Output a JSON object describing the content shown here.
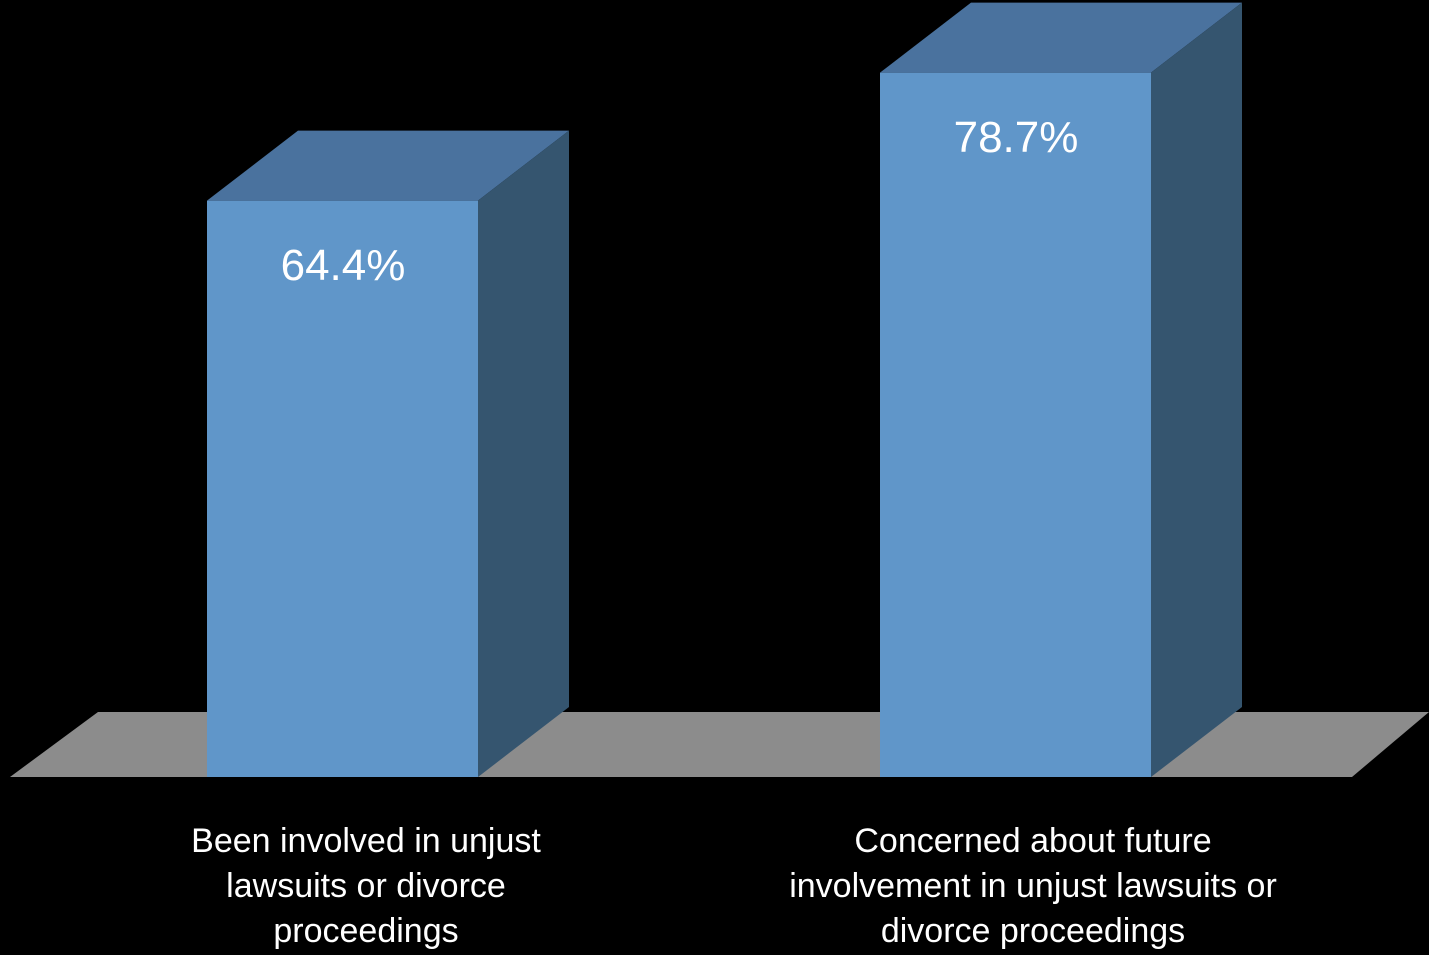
{
  "chart_data": {
    "type": "bar",
    "style": "3d-column",
    "categories": [
      "Been involved in unjust lawsuits or divorce proceedings",
      "Concerned about future involvement in unjust lawsuits or divorce proceedings"
    ],
    "values": [
      64.4,
      78.7
    ],
    "data_labels": [
      "64.4%",
      "78.7%"
    ],
    "title": "",
    "xlabel": "",
    "ylabel": "",
    "ylim": [
      0,
      100
    ],
    "grid": false,
    "legend": "none",
    "colors": {
      "background": "#000000",
      "floor": "#8c8c8c",
      "bar_front": "#6096c9",
      "bar_top": "#4a729e",
      "bar_side": "#35556f",
      "text": "#ffffff"
    }
  }
}
